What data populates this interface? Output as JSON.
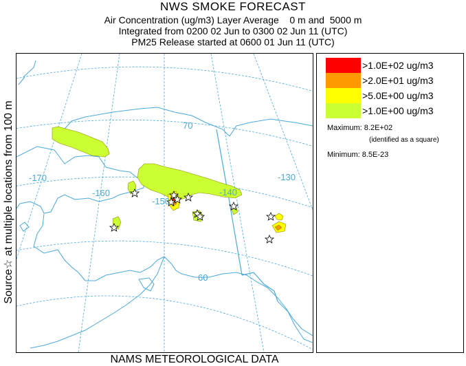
{
  "title": "NWS SMOKE FORECAST",
  "subtitle_1": "Air Concentration (ug/m3) Layer Average    0 m and  5000 m",
  "subtitle_2": "Integrated from 0200 02 Jun to 0300 02 Jun 11 (UTC)",
  "subtitle_3": "PM25 Release started at 0600 01 Jun 11 (UTC)",
  "side_label": "Source☆  at multiple locations   from   100 m",
  "footer": "NAMS METEOROLOGICAL DATA",
  "map": {
    "longitude_labels": [
      "-170",
      "-160",
      "-150",
      "-140",
      "-130"
    ],
    "latitude_labels": [
      "70",
      "60"
    ],
    "graticule_color": "#4aa8d8",
    "coast_color": "#4aa8d8",
    "source_marker": "star-icon",
    "source_count": 11
  },
  "legend": {
    "items": [
      {
        "label": ">1.0E+02 ug/m3",
        "color": "#ff0000"
      },
      {
        "label": ">2.0E+01 ug/m3",
        "color": "#ff9900"
      },
      {
        "label": ">5.0E+00 ug/m3",
        "color": "#ffff00"
      },
      {
        "label": ">1.0E+00 ug/m3",
        "color": "#ccff33"
      }
    ],
    "maximum": "Maximum: 8.2E+02",
    "maximum_note": "(identified as a square)",
    "minimum": "Minimum: 8.5E-23"
  }
}
